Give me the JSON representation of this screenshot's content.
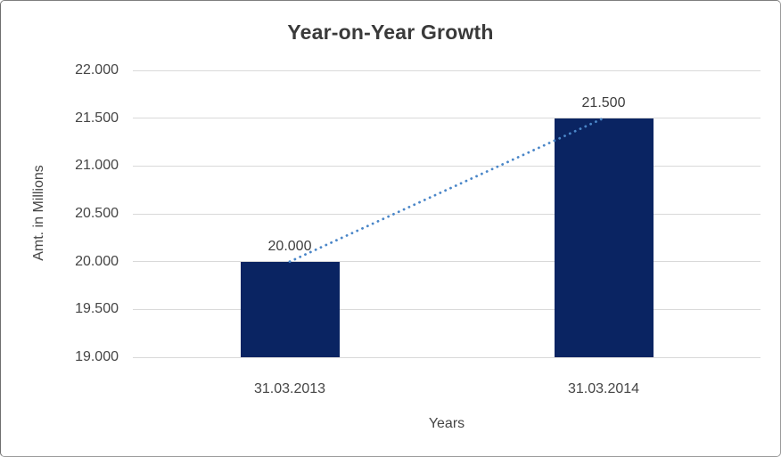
{
  "chart_data": {
    "type": "bar",
    "title": "Year-on-Year Growth",
    "xlabel": "Years",
    "ylabel": "Amt. in Millions",
    "categories": [
      "31.03.2013",
      "31.03.2014"
    ],
    "values": [
      20000,
      21500
    ],
    "value_labels": [
      "20.000",
      "21.500"
    ],
    "ylim": [
      19000,
      22000
    ],
    "ytick_step": 500,
    "ytick_labels": [
      "22.000",
      "21.500",
      "21.000",
      "20.500",
      "20.000",
      "19.500",
      "19.000"
    ],
    "grid": true,
    "legend": false,
    "trendline": {
      "style": "dotted",
      "from": "31.03.2013",
      "to": "31.03.2014"
    },
    "colors": {
      "bar": "#0a2462",
      "trendline": "#4a86c8",
      "gridline": "#d9d9d9",
      "axis_text": "#454545",
      "title_text": "#3a3a3a"
    }
  }
}
